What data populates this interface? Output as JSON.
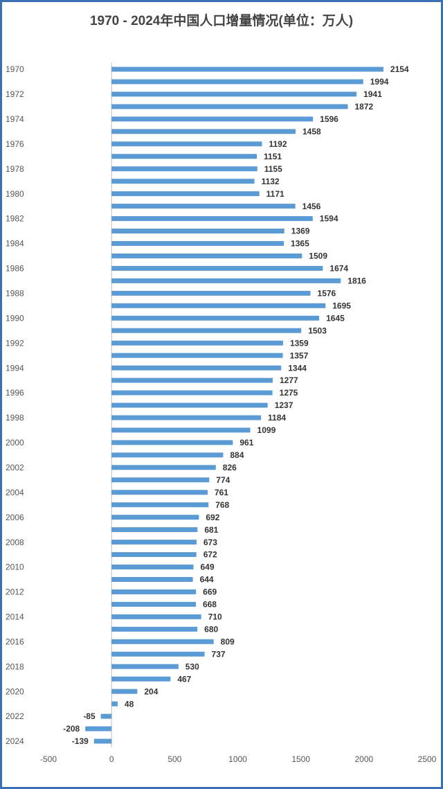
{
  "chart_data": {
    "type": "barh",
    "title": "1970 - 2024年中国人口增量情况(单位：万人)",
    "categories": [
      "1970",
      null,
      "1972",
      null,
      "1974",
      null,
      "1976",
      null,
      "1978",
      null,
      "1980",
      null,
      "1982",
      null,
      "1984",
      null,
      "1986",
      null,
      "1988",
      null,
      "1990",
      null,
      "1992",
      null,
      "1994",
      null,
      "1996",
      null,
      "1998",
      null,
      "2000",
      null,
      "2002",
      null,
      "2004",
      null,
      "2006",
      null,
      "2008",
      null,
      "2010",
      null,
      "2012",
      null,
      "2014",
      null,
      "2016",
      null,
      "2018",
      null,
      "2020",
      null,
      "2022",
      null,
      "2024"
    ],
    "values": [
      2154,
      1994,
      1941,
      1872,
      1596,
      1458,
      1192,
      1151,
      1155,
      1132,
      1171,
      1456,
      1594,
      1369,
      1365,
      1509,
      1674,
      1816,
      1576,
      1695,
      1645,
      1503,
      1359,
      1357,
      1344,
      1277,
      1275,
      1237,
      1184,
      1099,
      961,
      884,
      826,
      774,
      761,
      768,
      692,
      681,
      673,
      672,
      649,
      644,
      669,
      668,
      710,
      680,
      809,
      737,
      530,
      467,
      204,
      48,
      -85,
      -208,
      -139
    ],
    "color": "#5b9bd5",
    "xlim": [
      -500,
      2500
    ],
    "xticks": [
      -500,
      0,
      500,
      1000,
      1500,
      2000,
      2500
    ]
  }
}
